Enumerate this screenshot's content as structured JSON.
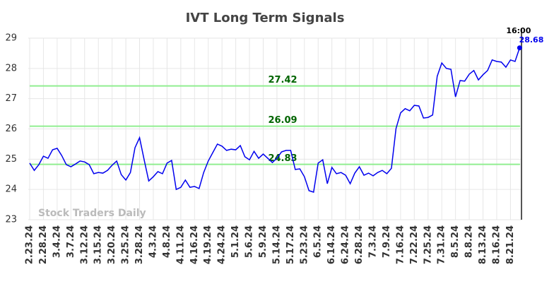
{
  "chart_data": {
    "type": "line",
    "title": "IVT Long Term Signals",
    "watermark": "Stock Traders Daily",
    "categories": [
      "2.23.24",
      null,
      null,
      "2.28.24",
      null,
      null,
      "3.4.24",
      null,
      null,
      "3.7.24",
      null,
      null,
      "3.12.24",
      null,
      null,
      "3.15.24",
      null,
      null,
      "3.20.24",
      null,
      null,
      "3.25.24",
      null,
      null,
      "3.28.24",
      null,
      null,
      "4.3.24",
      null,
      null,
      "4.8.24",
      null,
      null,
      "4.11.24",
      null,
      null,
      "4.16.24",
      null,
      null,
      "4.19.24",
      null,
      null,
      "4.24.24",
      null,
      null,
      "5.1.24",
      null,
      null,
      "5.6.24",
      null,
      null,
      "5.9.24",
      null,
      null,
      "5.14.24",
      null,
      null,
      "5.17.24",
      null,
      null,
      "5.23.24",
      null,
      null,
      "6.5.24",
      null,
      null,
      "6.14.24",
      null,
      null,
      "6.24.24",
      null,
      null,
      "6.28.24",
      null,
      null,
      "7.3.24",
      null,
      null,
      "7.9.24",
      null,
      null,
      "7.16.24",
      null,
      null,
      "7.22.24",
      null,
      null,
      "7.25.24",
      null,
      null,
      "7.31.24",
      null,
      null,
      "8.5.24",
      null,
      null,
      "8.8.24",
      null,
      null,
      "8.13.24",
      null,
      null,
      "8.16.24",
      null,
      null,
      "8.21.24",
      null,
      null
    ],
    "series": [
      {
        "color": "#0000ee",
        "values": [
          24.87,
          24.63,
          24.82,
          25.1,
          25.03,
          25.31,
          25.36,
          25.12,
          24.82,
          24.75,
          24.84,
          24.94,
          24.91,
          24.82,
          24.52,
          24.56,
          24.54,
          24.63,
          24.8,
          24.94,
          24.49,
          24.31,
          24.56,
          25.38,
          25.71,
          24.98,
          24.28,
          24.42,
          24.59,
          24.52,
          24.87,
          24.96,
          24.0,
          24.07,
          24.31,
          24.07,
          24.1,
          24.03,
          24.56,
          24.94,
          25.22,
          25.5,
          25.43,
          25.29,
          25.33,
          25.31,
          25.45,
          25.08,
          24.98,
          25.26,
          25.03,
          25.17,
          25.03,
          24.89,
          25.03,
          25.24,
          25.29,
          25.29,
          24.66,
          24.68,
          24.42,
          23.96,
          23.91,
          24.87,
          24.98,
          24.19,
          24.73,
          24.52,
          24.56,
          24.47,
          24.19,
          24.54,
          24.75,
          24.47,
          24.54,
          24.45,
          24.56,
          24.63,
          24.52,
          24.7,
          26.01,
          26.53,
          26.67,
          26.6,
          26.78,
          26.76,
          26.36,
          26.38,
          26.46,
          27.74,
          28.18,
          28.0,
          27.97,
          27.06,
          27.6,
          27.58,
          27.81,
          27.93,
          27.62,
          27.79,
          27.93,
          28.28,
          28.23,
          28.21,
          28.04,
          28.28,
          28.23,
          28.68
        ]
      }
    ],
    "last_point": {
      "time": "16:00",
      "value": 28.68
    },
    "reference_lines": [
      {
        "value": 27.42,
        "label": "27.42",
        "color": "#90ee90"
      },
      {
        "value": 26.09,
        "label": "26.09",
        "color": "#90ee90"
      },
      {
        "value": 24.83,
        "label": "24.83",
        "color": "#90ee90"
      }
    ],
    "ylim": [
      23,
      29
    ],
    "yticks": [
      23,
      24,
      25,
      26,
      27,
      28,
      29
    ],
    "grid": true
  }
}
